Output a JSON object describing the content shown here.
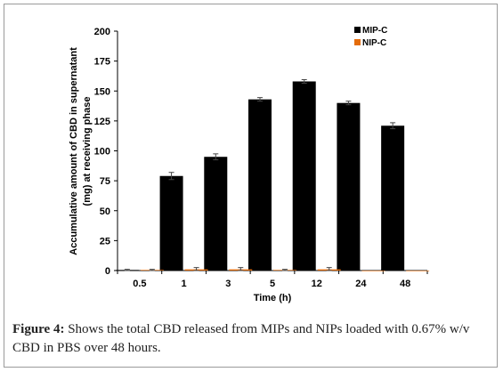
{
  "chart_data": {
    "type": "bar",
    "categories": [
      "0.5",
      "1",
      "3",
      "5",
      "12",
      "24",
      "48"
    ],
    "series": [
      {
        "name": "MIP-C",
        "color": "#000000",
        "values": [
          0.5,
          79,
          95,
          143,
          158,
          140,
          121
        ],
        "errors": [
          0.5,
          3,
          2.5,
          1.5,
          1.5,
          1.5,
          2.5
        ]
      },
      {
        "name": "NIP-C",
        "color": "#e46c0a",
        "values": [
          0.5,
          1,
          1,
          0.5,
          1,
          0,
          0
        ],
        "errors": [
          0.5,
          1.5,
          1.5,
          0.5,
          1.5,
          0,
          0
        ]
      }
    ],
    "xlabel": "Time (h)",
    "ylabel_lines": [
      "Accumulative amount of CBD in supernatant",
      "(mg) at receiving phase"
    ],
    "ylim": [
      0,
      200
    ],
    "yticks": [
      "0",
      "25",
      "50",
      "75",
      "100",
      "125",
      "150",
      "175",
      "200"
    ],
    "grid": false,
    "legend_position": "top-right"
  },
  "caption": {
    "label": "Figure 4:",
    "text": " Shows the total CBD released from MIPs and NIPs loaded with 0.67% w/v CBD in PBS over 48 hours."
  }
}
